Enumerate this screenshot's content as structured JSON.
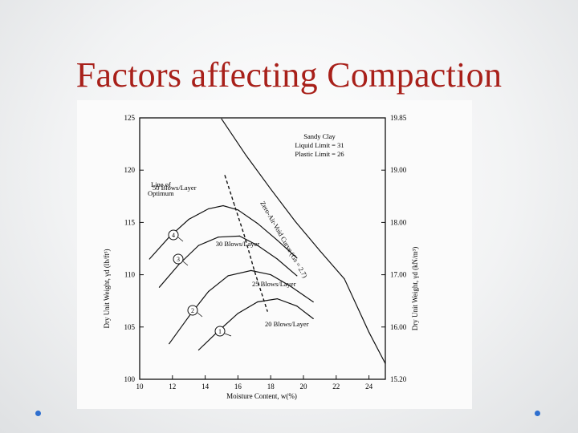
{
  "slide": {
    "title": "Factors affecting Compaction",
    "accent_color": "#a8201a",
    "bullet_color": "#2f6fcf"
  },
  "chart_data": {
    "type": "line",
    "xlabel": "Moisture Content, w(%)",
    "ylabel_left": "Dry Unit Weight, γd (lb/ft³)",
    "ylabel_right": "Dry Unit Weight, γd (kN/m³)",
    "xlim": [
      10,
      25
    ],
    "ylim": [
      100,
      125
    ],
    "x_ticks": [
      10,
      12,
      14,
      16,
      18,
      20,
      22,
      24
    ],
    "y_ticks_left": [
      100,
      105,
      110,
      115,
      120,
      125
    ],
    "y_ticks_right": [
      {
        "value": 100,
        "label": "15.20"
      },
      {
        "value": 105,
        "label": "16.00"
      },
      {
        "value": 110,
        "label": "17.00"
      },
      {
        "value": 115,
        "label": "18.00"
      },
      {
        "value": 120,
        "label": "19.00"
      },
      {
        "value": 125,
        "label": "19.85"
      }
    ],
    "legend": {
      "line1": "Sandy Clay",
      "line2": "Liquid Limit = 31",
      "line3": "Plastic Limit = 26"
    },
    "series": [
      {
        "name": "50 Blows/Layer",
        "marker": "4",
        "label": "50 Blows/Layer",
        "x": [
          10.6,
          11.8,
          13.0,
          14.2,
          15.1,
          16.0,
          17.2,
          18.4,
          19.6
        ],
        "y": [
          111.5,
          113.6,
          115.3,
          116.3,
          116.6,
          116.2,
          114.9,
          113.3,
          111.6
        ]
      },
      {
        "name": "30 Blows/Layer",
        "marker": "3",
        "label": "30 Blows/Layer",
        "x": [
          11.2,
          12.4,
          13.6,
          14.8,
          16.1,
          17.2,
          18.4,
          19.6
        ],
        "y": [
          108.8,
          111.0,
          112.8,
          113.6,
          113.7,
          112.8,
          111.5,
          109.9
        ]
      },
      {
        "name": "25 Blows/Layer",
        "marker": "2",
        "label": "25 Blows/Layer",
        "x": [
          11.8,
          13.0,
          14.2,
          15.4,
          16.8,
          18.0,
          19.2,
          20.6
        ],
        "y": [
          103.4,
          106.0,
          108.4,
          109.9,
          110.4,
          110.0,
          108.9,
          107.4
        ]
      },
      {
        "name": "20 Blows/Layer",
        "marker": "1",
        "label": "20 Blows/Layer",
        "x": [
          13.6,
          14.8,
          16.0,
          17.2,
          18.4,
          19.6,
          20.6
        ],
        "y": [
          102.8,
          104.6,
          106.3,
          107.4,
          107.7,
          107.0,
          105.8
        ]
      },
      {
        "name": "Zero-Air-Void Curve (Gs = 2.7)",
        "label": "Zero-Air-Void Curve (Gs = 2.7)",
        "x": [
          15.0,
          16.5,
          18.0,
          19.5,
          21.0,
          22.5,
          24.0,
          25.0
        ],
        "y": [
          124.9,
          121.4,
          118.2,
          115.1,
          112.3,
          109.6,
          104.5,
          101.5
        ]
      },
      {
        "name": "Line of Optimum",
        "label": "Line of Optimum",
        "x": [
          15.2,
          15.8,
          16.4,
          17.0,
          17.8
        ],
        "y": [
          119.5,
          116.6,
          113.7,
          110.4,
          106.5
        ]
      }
    ],
    "grid": false
  }
}
